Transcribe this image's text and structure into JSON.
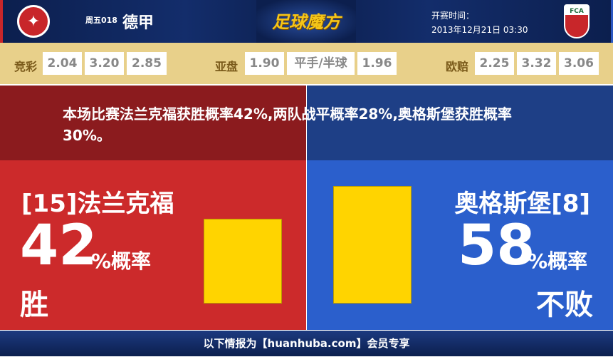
{
  "header": {
    "round": "周五018",
    "league": "德甲",
    "brand": "足球魔方",
    "kickoff_label": "开赛时间：",
    "kickoff_time": "2013年12月21日 03:30",
    "away_logo_text": "FCA"
  },
  "odds": {
    "jingcai": {
      "label": "竞彩",
      "values": [
        "2.04",
        "3.20",
        "2.85"
      ]
    },
    "yapan": {
      "label": "亚盘",
      "values": [
        "1.90",
        "平手/半球",
        "1.96"
      ]
    },
    "oupei": {
      "label": "欧赔",
      "values": [
        "2.25",
        "3.32",
        "3.06"
      ]
    }
  },
  "summary": "本场比赛法兰克福获胜概率42%,两队战平概率28%,奥格斯堡获胜概率30%。",
  "home": {
    "team": "[15]法兰克福",
    "value": "42",
    "unit": "%概率",
    "result": "胜",
    "percent": 42
  },
  "away": {
    "team": "奥格斯堡[8]",
    "value": "58",
    "unit": "%概率",
    "result": "不败",
    "percent": 58
  },
  "colors": {
    "home": "#cc2a2b",
    "away": "#2b5fcc",
    "bar": "#ffd400",
    "odds_bg": "#e8d08a"
  },
  "footer": "以下情报为【huanhuba.com】会员专享"
}
